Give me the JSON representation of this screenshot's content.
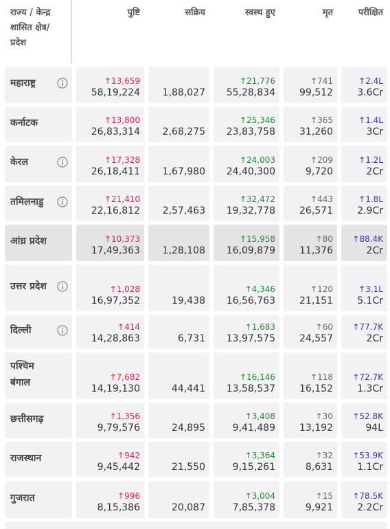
{
  "table": {
    "headers": [
      "राज्य / केन्द्र शासित क्षेत्र/ प्रदेश",
      "पुष्टि",
      "सक्रिय",
      "स्वस्थ हुए",
      "मृत",
      "परीक्षित"
    ],
    "rows": [
      {
        "state": "महाराष्ट्र",
        "info": true,
        "confirmed": {
          "delta": "↑13,659",
          "total": "58,19,224"
        },
        "active": "1,88,027",
        "recovered": {
          "delta": "↑21,776",
          "total": "55,28,834"
        },
        "deceased": {
          "delta": "↑741",
          "total": "99,512"
        },
        "tested": {
          "delta": "↑2.4L",
          "total": "3.6Cr"
        }
      },
      {
        "state": "कर्नाटक",
        "info": false,
        "confirmed": {
          "delta": "↑13,800",
          "total": "26,83,314"
        },
        "active": "2,68,275",
        "recovered": {
          "delta": "↑25,346",
          "total": "23,83,758"
        },
        "deceased": {
          "delta": "↑365",
          "total": "31,260"
        },
        "tested": {
          "delta": "↑1.4L",
          "total": "3Cr"
        }
      },
      {
        "state": "केरल",
        "info": true,
        "confirmed": {
          "delta": "↑17,328",
          "total": "26,18,411"
        },
        "active": "1,67,980",
        "recovered": {
          "delta": "↑24,003",
          "total": "24,40,300"
        },
        "deceased": {
          "delta": "↑209",
          "total": "9,720"
        },
        "tested": {
          "delta": "↑1.2L",
          "total": "2Cr"
        }
      },
      {
        "state": "तमिलनाडु",
        "info": true,
        "confirmed": {
          "delta": "↑21,410",
          "total": "22,16,812"
        },
        "active": "2,57,463",
        "recovered": {
          "delta": "↑32,472",
          "total": "19,32,778"
        },
        "deceased": {
          "delta": "↑443",
          "total": "26,571"
        },
        "tested": {
          "delta": "↑1.8L",
          "total": "2.9Cr"
        }
      },
      {
        "state": "आंध्र प्रदेश",
        "info": false,
        "highlighted": true,
        "confirmed": {
          "delta": "↑10,373",
          "total": "17,49,363"
        },
        "active": "1,28,108",
        "recovered": {
          "delta": "↑15,958",
          "total": "16,09,879"
        },
        "deceased": {
          "delta": "↑80",
          "total": "11,376"
        },
        "tested": {
          "delta": "↑88.4K",
          "total": "2Cr"
        }
      },
      {
        "state": "उत्तर प्रदेश",
        "info": true,
        "confirmed": {
          "delta": "↑1,028",
          "total": "16,97,352"
        },
        "active": "19,438",
        "recovered": {
          "delta": "↑4,346",
          "total": "16,56,763"
        },
        "deceased": {
          "delta": "↑120",
          "total": "21,151"
        },
        "tested": {
          "delta": "↑3.1L",
          "total": "5.1Cr"
        }
      },
      {
        "state": "दिल्ली",
        "info": true,
        "confirmed": {
          "delta": "↑414",
          "total": "14,28,863"
        },
        "active": "6,731",
        "recovered": {
          "delta": "↑1,683",
          "total": "13,97,575"
        },
        "deceased": {
          "delta": "↑60",
          "total": "24,557"
        },
        "tested": {
          "delta": "↑77.7K",
          "total": "2Cr"
        }
      },
      {
        "state": "पश्चिम बंगाल",
        "info": false,
        "confirmed": {
          "delta": "↑7,682",
          "total": "14,19,130"
        },
        "active": "44,441",
        "recovered": {
          "delta": "↑16,146",
          "total": "13,58,537"
        },
        "deceased": {
          "delta": "↑118",
          "total": "16,152"
        },
        "tested": {
          "delta": "↑72.7K",
          "total": "1.3Cr"
        }
      },
      {
        "state": "छत्तीसगढ़",
        "info": false,
        "confirmed": {
          "delta": "↑1,356",
          "total": "9,79,576"
        },
        "active": "24,895",
        "recovered": {
          "delta": "↑3,408",
          "total": "9,41,489"
        },
        "deceased": {
          "delta": "↑30",
          "total": "13,192"
        },
        "tested": {
          "delta": "↑52.8K",
          "total": "94L"
        }
      },
      {
        "state": "राजस्थान",
        "info": false,
        "confirmed": {
          "delta": "↑942",
          "total": "9,45,442"
        },
        "active": "21,550",
        "recovered": {
          "delta": "↑3,364",
          "total": "9,15,261"
        },
        "deceased": {
          "delta": "↑32",
          "total": "8,631"
        },
        "tested": {
          "delta": "↑53.9K",
          "total": "1.1Cr"
        }
      },
      {
        "state": "गुजरात",
        "info": false,
        "confirmed": {
          "delta": "↑996",
          "total": "8,15,386"
        },
        "active": "20,087",
        "recovered": {
          "delta": "↑3,004",
          "total": "7,85,378"
        },
        "deceased": {
          "delta": "↑15",
          "total": "9,921"
        },
        "tested": {
          "delta": "↑78.5K",
          "total": "2.2Cr"
        }
      }
    ]
  }
}
